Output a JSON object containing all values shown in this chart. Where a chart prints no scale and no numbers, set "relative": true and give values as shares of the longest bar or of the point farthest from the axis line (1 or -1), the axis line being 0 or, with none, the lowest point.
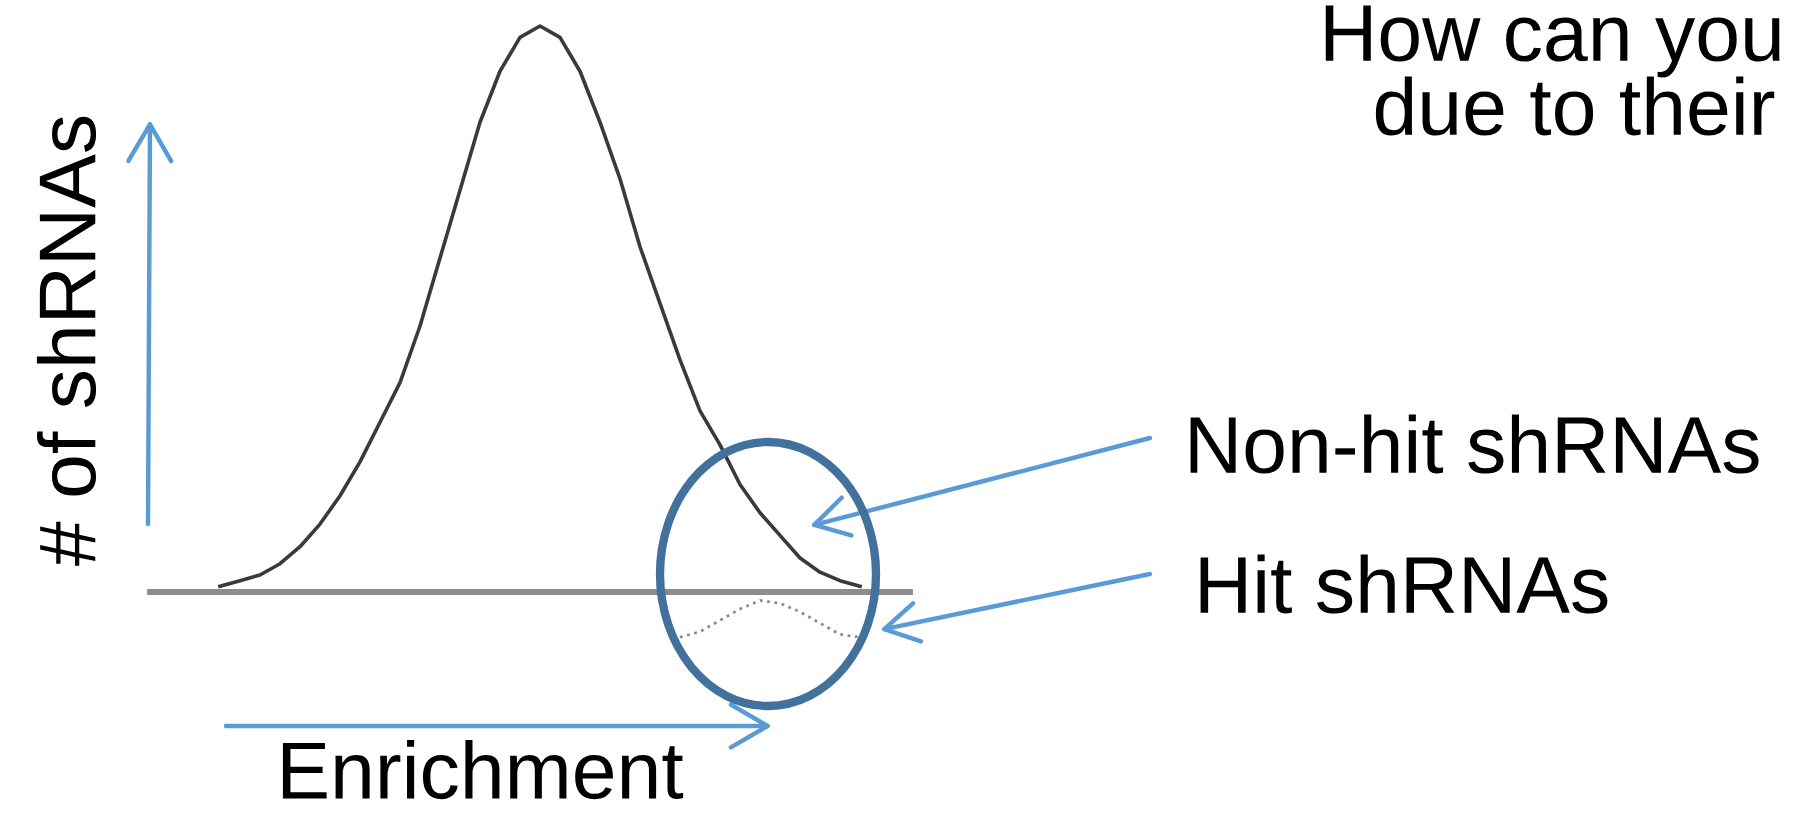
{
  "chart_data": {
    "type": "line",
    "relative": true,
    "xlabel": "Enrichment",
    "ylabel": "# of shRNAs",
    "categories": [
      null,
      null,
      null,
      null,
      null,
      null,
      null,
      null,
      null,
      null,
      null,
      null,
      null,
      null,
      null,
      null,
      null,
      null,
      null,
      null,
      null,
      null,
      null,
      null,
      null,
      null,
      null,
      null,
      null,
      null,
      null,
      null,
      null
    ],
    "series": [
      {
        "color": "#3a3a3a",
        "line_style": "solid",
        "values": [
          0.01,
          0.02,
          0.03,
          0.05,
          0.08,
          0.12,
          0.17,
          0.23,
          0.3,
          0.37,
          0.47,
          0.59,
          0.71,
          0.83,
          0.92,
          0.98,
          1.0,
          0.98,
          0.92,
          0.83,
          0.73,
          0.61,
          0.51,
          0.41,
          0.32,
          0.26,
          0.19,
          0.14,
          0.1,
          0.06,
          0.035,
          0.02,
          0.01
        ]
      },
      {
        "color": "#8a8a8a",
        "line_style": "dotted",
        "values": [
          null,
          null,
          null,
          null,
          null,
          null,
          null,
          null,
          null,
          null,
          null,
          null,
          null,
          null,
          null,
          null,
          null,
          null,
          null,
          null,
          null,
          null,
          null,
          -0.08,
          -0.07,
          -0.05,
          -0.03,
          -0.015,
          -0.02,
          -0.035,
          -0.055,
          -0.075,
          -0.08
        ]
      }
    ],
    "annotations": [
      "How can you",
      "due to their",
      "Non-hit shRNAs",
      "Hit shRNAs"
    ]
  }
}
